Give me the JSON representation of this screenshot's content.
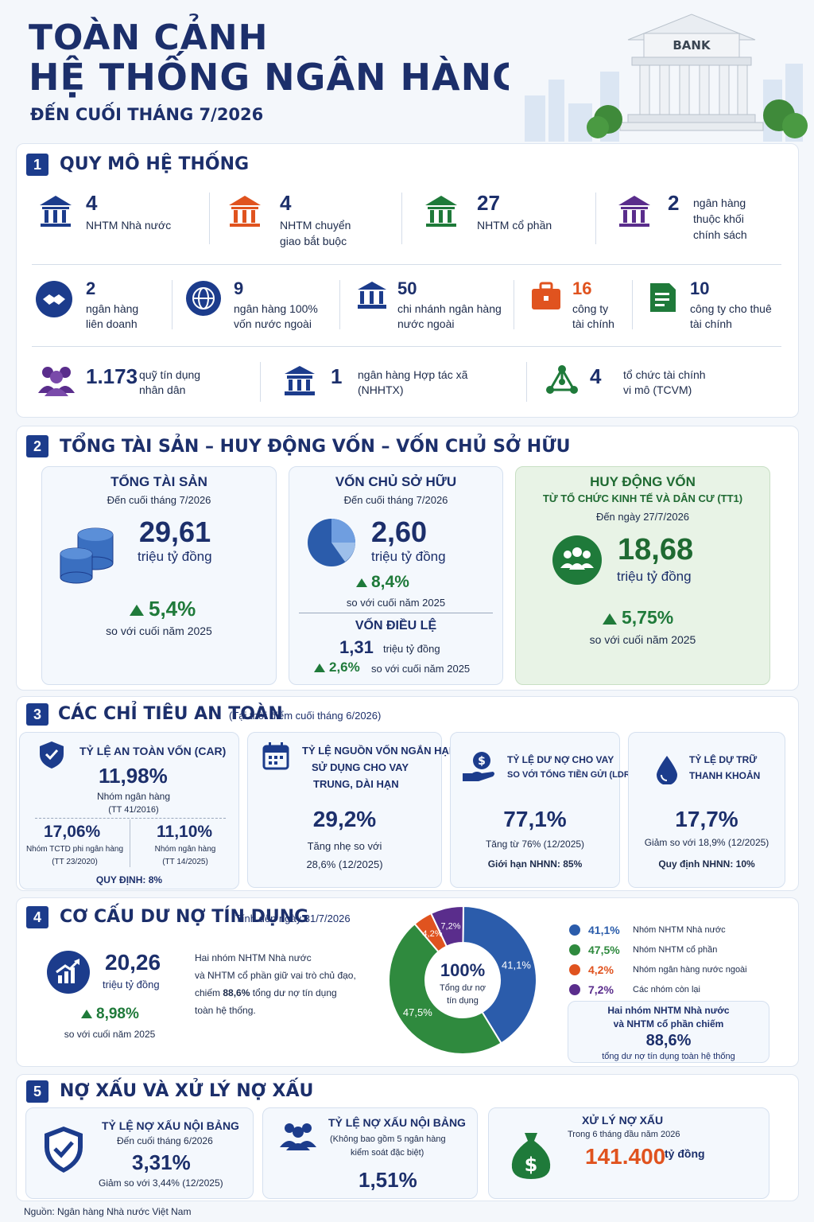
{
  "header": {
    "title_line1": "TOÀN CẢNH",
    "title_line2": "HỆ THỐNG NGÂN HÀNG VIỆT NAM",
    "subtitle": "ĐẾN CUỐI THÁNG 7/2026",
    "bank_sign": "BANK"
  },
  "s1": {
    "num": "1",
    "title": "QUY MÔ HỆ THỐNG",
    "row1": [
      {
        "value": "4",
        "label1": "NHTM Nhà nước",
        "label2": "",
        "label3": "",
        "color": "#1c3c8c"
      },
      {
        "value": "4",
        "label1": "NHTM chuyển",
        "label2": "giao bắt buộc",
        "label3": "",
        "color": "#e0531f"
      },
      {
        "value": "27",
        "label1": "NHTM cổ phần",
        "label2": "",
        "label3": "",
        "color": "#1f7a3a"
      },
      {
        "value": "2",
        "label1": "ngân hàng",
        "label2": "thuộc khối",
        "label3": "chính sách",
        "color": "#5a2d8c"
      }
    ],
    "row2": [
      {
        "value": "2",
        "label1": "ngân hàng",
        "label2": "liên doanh"
      },
      {
        "value": "9",
        "label1": "ngân hàng 100%",
        "label2": "vốn nước ngoài"
      },
      {
        "value": "50",
        "label1": "chi nhánh ngân hàng",
        "label2": "nước ngoài"
      },
      {
        "value": "16",
        "label1": "công ty",
        "label2": "tài chính"
      },
      {
        "value": "10",
        "label1": "công ty cho thuê",
        "label2": "tài chính"
      }
    ],
    "row3": [
      {
        "value": "1.173",
        "label1": "quỹ tín dụng",
        "label2": "nhân dân"
      },
      {
        "value": "1",
        "label1": "ngân hàng Hợp tác xã",
        "label2": "(NHHTX)"
      },
      {
        "value": "4",
        "label1": "tổ chức tài chính",
        "label2": "vi mô (TCVM)"
      }
    ]
  },
  "s2": {
    "num": "2",
    "title": "TỔNG TÀI SẢN – HUY ĐỘNG VỐN – VỐN CHỦ SỞ HỮU",
    "assets": {
      "title": "TỔNG TÀI SẢN",
      "date": "Đến cuối tháng 7/2026",
      "value": "29,61",
      "unit": "triệu tỷ đồng",
      "growth": "5,4%",
      "compare": "so với cuối năm 2025"
    },
    "equity": {
      "title": "VỐN CHỦ SỞ HỮU",
      "date": "Đến cuối tháng 7/2026",
      "value": "2,60",
      "unit": "triệu tỷ đồng",
      "growth": "8,4%",
      "compare": "so với cuối năm 2025",
      "charter_title": "VỐN ĐIỀU LỆ",
      "charter_value": "1,31",
      "charter_unit": "triệu tỷ đồng",
      "charter_growth": "2,6%",
      "charter_compare": "so với cuối năm 2025"
    },
    "deposits": {
      "title": "HUY ĐỘNG VỐN",
      "subtitle": "TỪ TỔ CHỨC KINH TẾ VÀ DÂN CƯ (TT1)",
      "date": "Đến ngày 27/7/2026",
      "value": "18,68",
      "unit": "triệu tỷ đồng",
      "growth": "5,75%",
      "compare": "so với cuối năm 2025"
    }
  },
  "s3": {
    "num": "3",
    "title": "CÁC CHỈ TIÊU AN TOÀN",
    "note": "(Tại thời điểm cuối tháng 6/2026)",
    "car": {
      "title": "TỶ LỆ AN TOÀN VỐN (CAR)",
      "value": "11,98%",
      "desc1": "Nhóm ngân hàng",
      "desc2": "(TT 41/2016)",
      "left_value": "17,06%",
      "left_desc1": "Nhóm TCTD phi ngân hàng",
      "left_desc2": "(TT 23/2020)",
      "right_value": "11,10%",
      "right_desc1": "Nhóm ngân hàng",
      "right_desc2": "(TT 14/2025)",
      "rule": "QUY ĐỊNH: 8%"
    },
    "short": {
      "title1": "TỶ LỆ NGUỒN VỐN NGẮN HẠN",
      "title2": "SỬ DỤNG CHO VAY",
      "title3": "TRUNG, DÀI HẠN",
      "value": "29,2%",
      "desc1": "Tăng nhẹ so với",
      "desc2": "28,6% (12/2025)"
    },
    "ldr": {
      "title1": "TỶ LỆ DƯ NỢ CHO VAY",
      "title2": "SO VỚI TỔNG TIỀN GỬI (LDR)",
      "value": "77,1%",
      "desc1": "Tăng từ 76% (12/2025)",
      "desc2": "Giới hạn NHNN: 85%"
    },
    "reserve": {
      "title1": "TỶ LỆ DỰ TRỮ",
      "title2": "THANH KHOẢN",
      "value": "17,7%",
      "desc1": "Giảm so với 18,9% (12/2025)",
      "desc2": "Quy định NHNN: 10%"
    }
  },
  "s4": {
    "num": "4",
    "title": "CƠ CẤU DƯ NỢ TÍN DỤNG",
    "note": "Tính đến ngày 31/7/2026",
    "value": "20,26",
    "unit": "triệu tỷ đồng",
    "growth": "8,98%",
    "compare": "so với cuối năm 2025",
    "desc1": "Hai nhóm NHTM Nhà nước",
    "desc2": "và NHTM cổ phần giữ vai trò chủ đạo,",
    "desc3_pre": "chiếm ",
    "desc3_bold": "88,6%",
    "desc3_post": " tổng dư nợ tín dụng",
    "desc4": "toàn hệ thống.",
    "donut_center": "100%",
    "donut_sub1": "Tổng dư nợ",
    "donut_sub2": "tín dụng",
    "box_line1": "Hai nhóm NHTM Nhà nước",
    "box_line2": "và NHTM cổ phần chiếm",
    "box_value": "88,6%",
    "box_line3": "tổng dư nợ tín dụng toàn hệ thống"
  },
  "chart_data": {
    "type": "pie",
    "categories": [
      "Nhóm NHTM Nhà nước",
      "Nhóm NHTM cổ phần",
      "Nhóm ngân hàng nước ngoài",
      "Các nhóm còn lại"
    ],
    "values": [
      41.1,
      47.5,
      4.2,
      7.2
    ],
    "value_labels": [
      "41,1%",
      "47,5%",
      "4,2%",
      "7,2%"
    ],
    "colors": [
      "#2b5cab",
      "#2f8a3e",
      "#e0531f",
      "#5a2d8c"
    ],
    "legend_placement": "right"
  },
  "s5": {
    "num": "5",
    "title": "NỢ XẤU VÀ XỬ LÝ NỢ XẤU",
    "onbs": {
      "title": "TỶ LỆ NỢ XẤU NỘI BẢNG",
      "date": "Đến cuối tháng 6/2026",
      "value": "3,31%",
      "desc": "Giảm so với 3,44% (12/2025)"
    },
    "onbs2": {
      "title": "TỶ LỆ NỢ XẤU NỘI BẢNG",
      "desc1": "(Không bao gồm 5 ngân hàng",
      "desc2": "kiểm soát đặc biệt)",
      "value": "1,51%"
    },
    "handled": {
      "title": "XỬ LÝ NỢ XẤU",
      "date": "Trong 6 tháng đầu năm 2026",
      "value": "141.400",
      "unit": "tỷ đồng"
    }
  },
  "footer": {
    "source": "Nguồn: Ngân hàng Nhà nước Việt Nam"
  }
}
